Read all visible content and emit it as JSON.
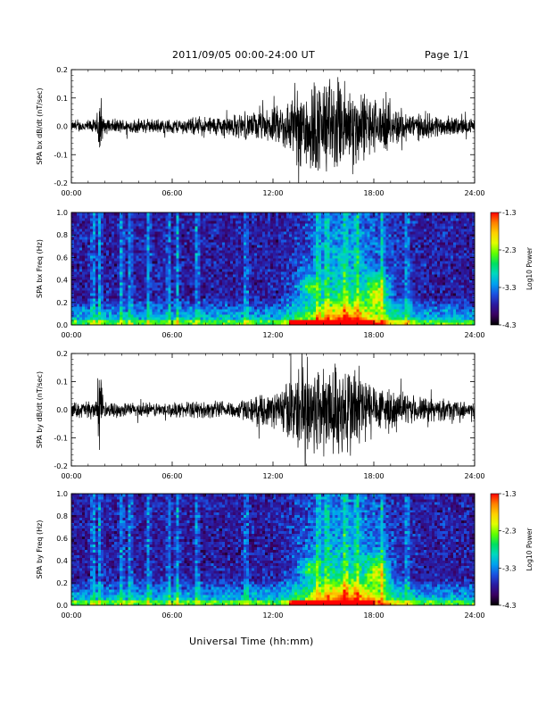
{
  "header": {
    "title": "2011/09/05  00:00-24:00 UT",
    "page": "Page 1/1"
  },
  "footer": {
    "xlabel": "Universal Time (hh:mm)"
  },
  "colors": {
    "trace": "#000000",
    "colormap": [
      "#000000",
      "#3a0060",
      "#2a1aa0",
      "#1a50e0",
      "#00a0f0",
      "#00d8c0",
      "#00e060",
      "#60ff00",
      "#e0ff00",
      "#ffd000",
      "#ff8000",
      "#ff0000"
    ]
  },
  "chart_data": [
    {
      "type": "line",
      "ylabel": "SPA bx dB/dt (nT/sec)",
      "xlim": [
        0,
        24
      ],
      "ylim": [
        -0.2,
        0.2
      ],
      "yticks": [
        "-0.2",
        "-0.1",
        "0.0",
        "0.1",
        "0.2"
      ],
      "xticks": [
        "00:00",
        "06:00",
        "12:00",
        "18:00",
        "24:00"
      ],
      "envelope": [
        [
          0,
          0.02
        ],
        [
          1.5,
          0.03
        ],
        [
          1.7,
          0.19
        ],
        [
          1.9,
          0.03
        ],
        [
          6,
          0.03
        ],
        [
          10,
          0.05
        ],
        [
          12,
          0.07
        ],
        [
          13,
          0.12
        ],
        [
          14,
          0.2
        ],
        [
          16,
          0.2
        ],
        [
          18,
          0.12
        ],
        [
          20,
          0.06
        ],
        [
          24,
          0.03
        ]
      ]
    },
    {
      "type": "heatmap",
      "ylabel": "SPA bx Freq (Hz)",
      "xlim": [
        0,
        24
      ],
      "ylim": [
        0,
        1.0
      ],
      "yticks": [
        "0.0",
        "0.2",
        "0.4",
        "0.6",
        "0.8",
        "1.0"
      ],
      "xticks": [
        "00:00",
        "06:00",
        "12:00",
        "18:00",
        "24:00"
      ],
      "colorbar": {
        "label": "Log10 Power",
        "ticks": [
          "-1.3",
          "-2.3",
          "-3.3",
          "-4.3"
        ],
        "range": [
          -4.3,
          -1.3
        ]
      }
    },
    {
      "type": "line",
      "ylabel": "SPA by dB/dt (nT/sec)",
      "xlim": [
        0,
        24
      ],
      "ylim": [
        -0.2,
        0.2
      ],
      "yticks": [
        "-0.2",
        "-0.1",
        "0.0",
        "0.1",
        "0.2"
      ],
      "xticks": [
        "00:00",
        "06:00",
        "12:00",
        "18:00",
        "24:00"
      ],
      "envelope": [
        [
          0,
          0.03
        ],
        [
          1.5,
          0.04
        ],
        [
          1.7,
          0.19
        ],
        [
          1.9,
          0.03
        ],
        [
          6,
          0.03
        ],
        [
          10,
          0.04
        ],
        [
          12,
          0.07
        ],
        [
          13,
          0.13
        ],
        [
          14,
          0.2
        ],
        [
          17,
          0.2
        ],
        [
          18,
          0.11
        ],
        [
          20,
          0.06
        ],
        [
          24,
          0.03
        ]
      ]
    },
    {
      "type": "heatmap",
      "ylabel": "SPA by Freq (Hz)",
      "xlim": [
        0,
        24
      ],
      "ylim": [
        0,
        1.0
      ],
      "yticks": [
        "0.0",
        "0.2",
        "0.4",
        "0.6",
        "0.8",
        "1.0"
      ],
      "xticks": [
        "00:00",
        "06:00",
        "12:00",
        "18:00",
        "24:00"
      ],
      "colorbar": {
        "label": "Log10 Power",
        "ticks": [
          "-1.3",
          "-2.3",
          "-3.3",
          "-4.3"
        ],
        "range": [
          -4.3,
          -1.3
        ]
      }
    }
  ]
}
